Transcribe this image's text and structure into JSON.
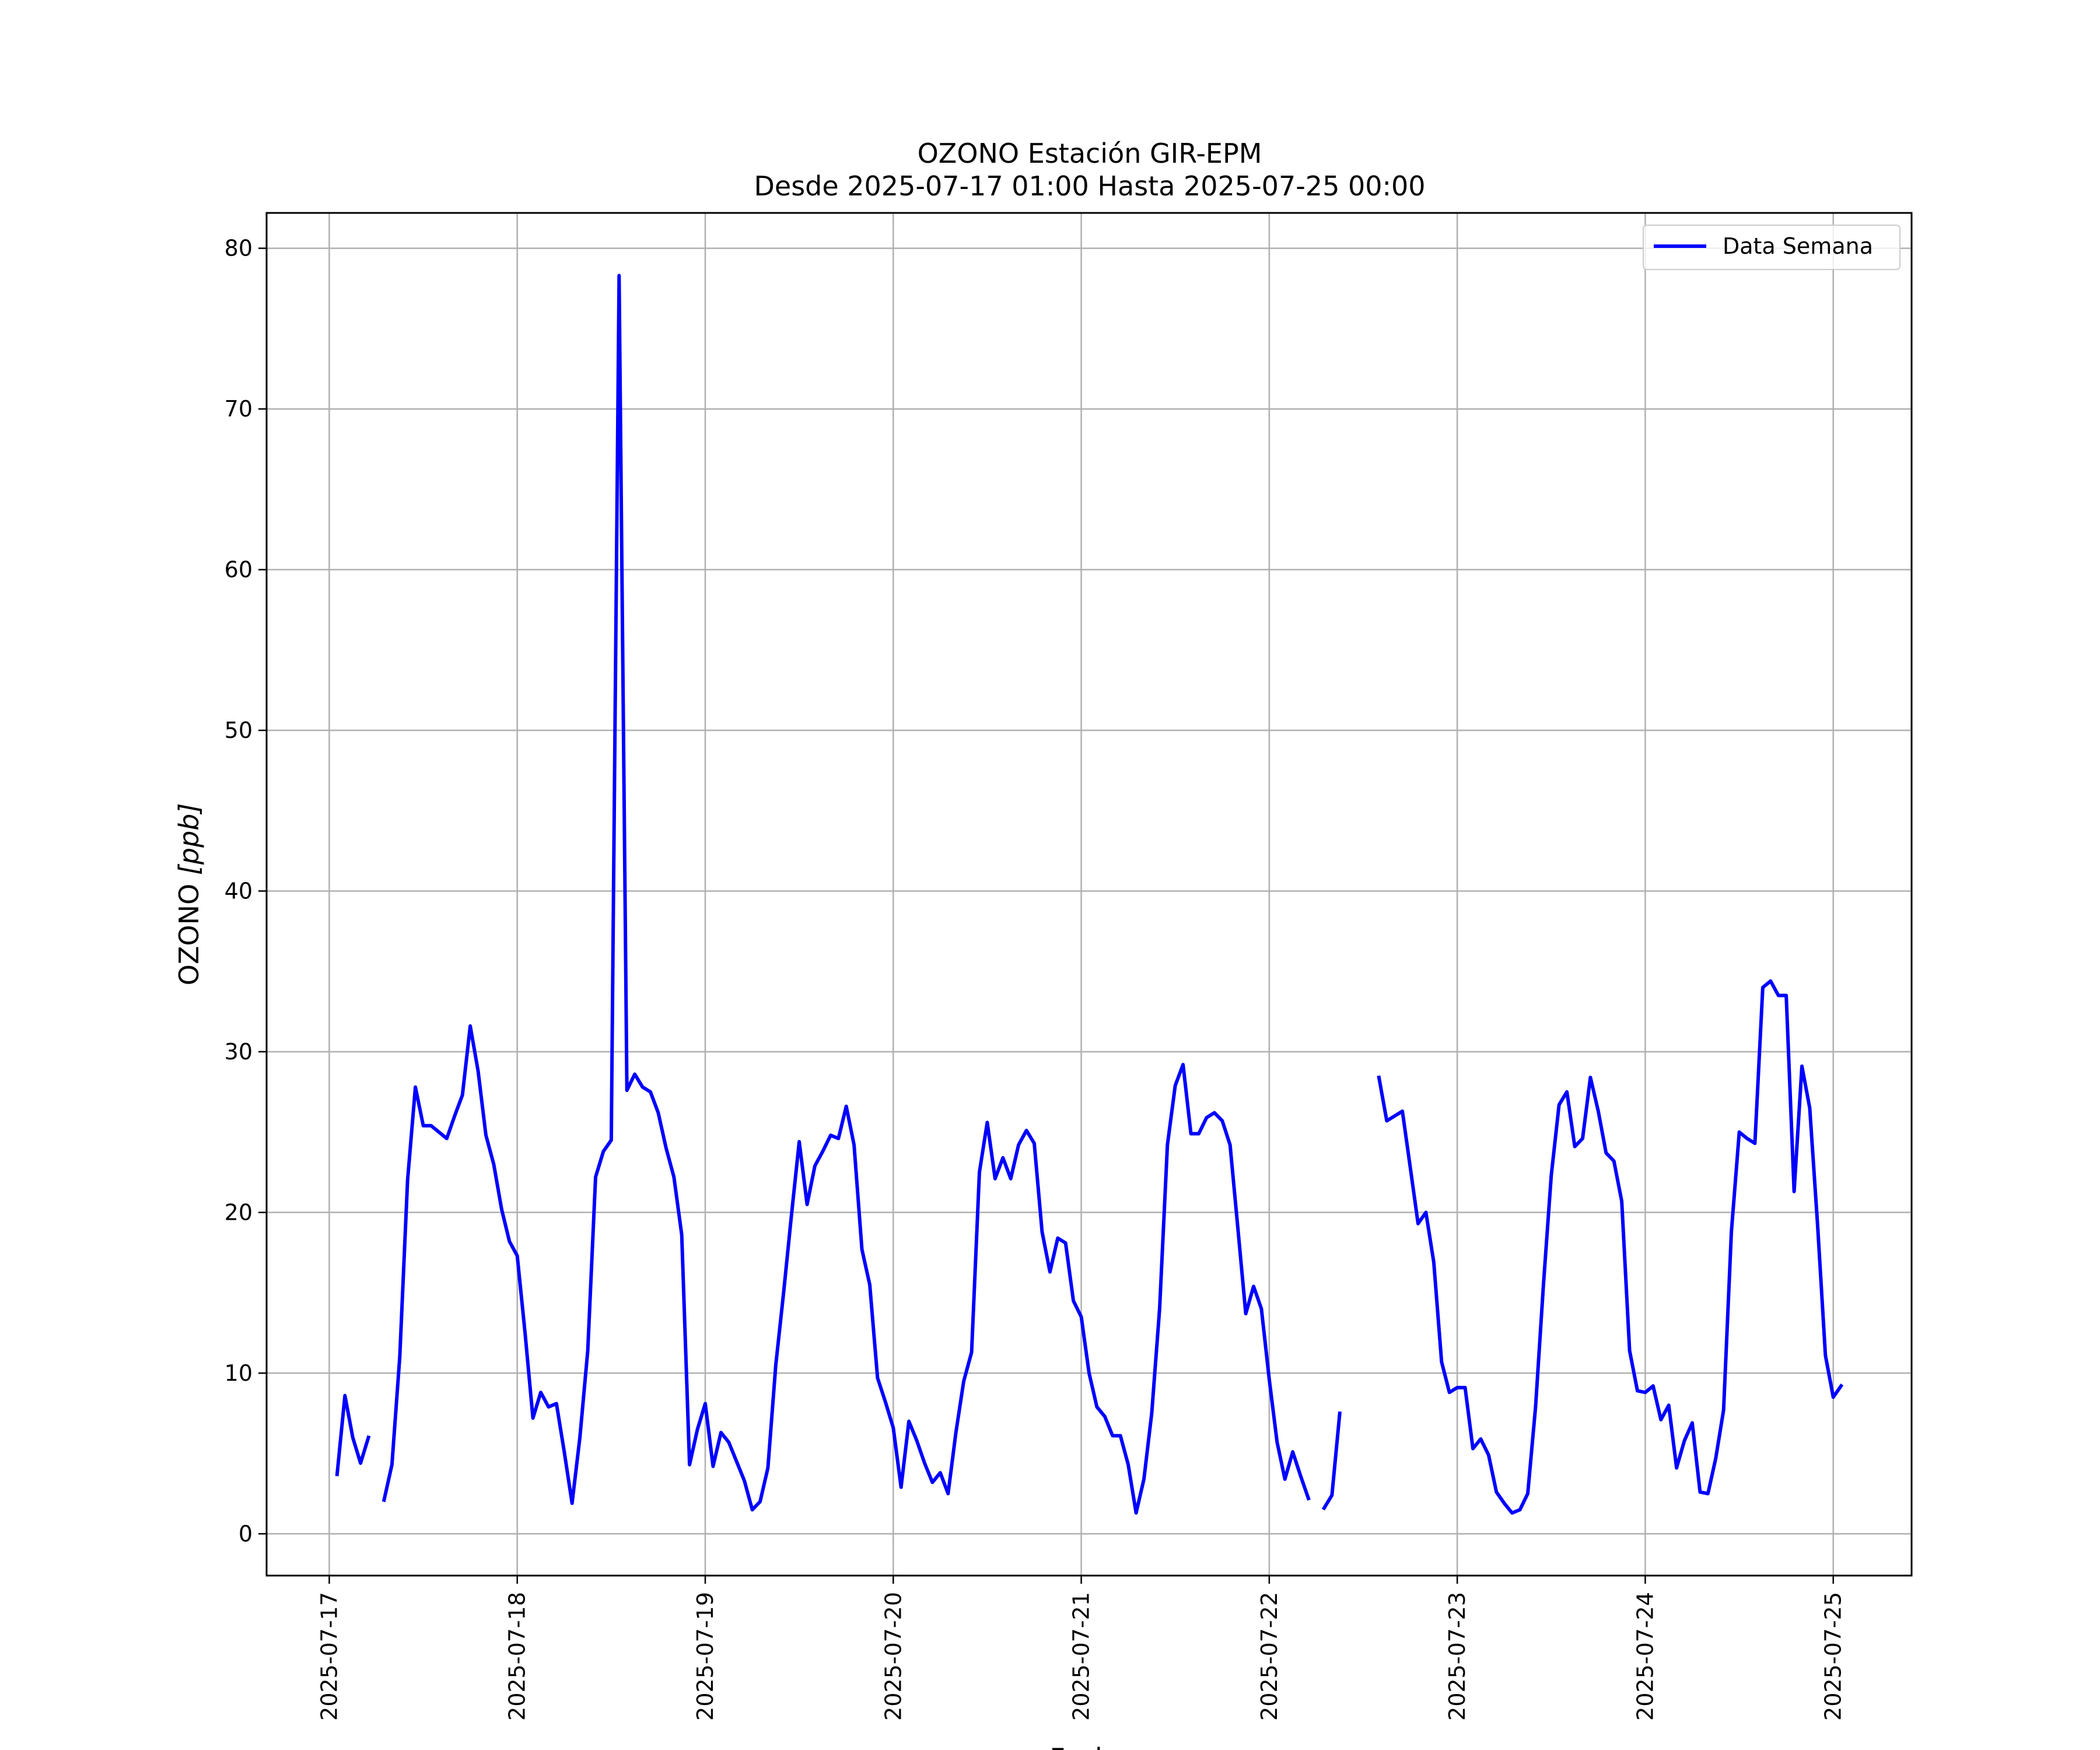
{
  "chart_data": {
    "type": "line",
    "title": "OZONO Estación GIR-EPM",
    "subtitle": "Desde 2025-07-17 01:00 Hasta 2025-07-25 00:00",
    "xlabel": "Fecha",
    "ylabel_main": "OZONO ",
    "ylabel_unit": "[ppb]",
    "grid": true,
    "legend_position": "top-right",
    "x_ticks": [
      "2025-07-17",
      "2025-07-18",
      "2025-07-19",
      "2025-07-20",
      "2025-07-21",
      "2025-07-22",
      "2025-07-23",
      "2025-07-24",
      "2025-07-25"
    ],
    "y_ticks": [
      "0",
      "10",
      "20",
      "30",
      "40",
      "50",
      "60",
      "70",
      "80"
    ],
    "xlim": [
      "2025-07-16 16:00",
      "2025-07-25 10:00"
    ],
    "ylim": [
      -2.6,
      82.2
    ],
    "colors": {
      "series": "#0000ff",
      "grid": "#b0b0b0"
    },
    "series": [
      {
        "name": "Data Semana",
        "x_start": "2025-07-17 01:00",
        "x_step": "1 hour",
        "values": [
          3.7,
          8.6,
          6.0,
          4.4,
          6.0,
          null,
          2.1,
          4.3,
          11.0,
          22.0,
          27.8,
          25.4,
          25.4,
          25.0,
          24.6,
          26.0,
          27.3,
          31.6,
          28.8,
          24.8,
          23.0,
          20.2,
          18.2,
          17.3,
          12.5,
          7.2,
          8.8,
          7.9,
          8.1,
          5.1,
          1.9,
          6.0,
          11.4,
          22.2,
          23.8,
          24.5,
          78.3,
          27.6,
          28.6,
          27.8,
          27.5,
          26.2,
          24.0,
          22.2,
          18.6,
          4.3,
          6.5,
          8.1,
          4.2,
          6.3,
          5.7,
          4.5,
          3.3,
          1.5,
          2.0,
          4.1,
          10.5,
          15.0,
          19.8,
          24.4,
          20.5,
          22.9,
          23.8,
          24.8,
          24.6,
          26.6,
          24.2,
          17.7,
          15.5,
          9.7,
          8.2,
          6.6,
          2.9,
          7.0,
          5.8,
          4.4,
          3.2,
          3.8,
          2.5,
          6.3,
          9.5,
          11.3,
          22.5,
          25.6,
          22.1,
          23.4,
          22.1,
          24.2,
          25.1,
          24.3,
          18.8,
          16.3,
          18.4,
          18.1,
          14.5,
          13.5,
          10.0,
          7.9,
          7.3,
          6.1,
          6.1,
          4.3,
          1.3,
          3.4,
          7.5,
          14.0,
          24.2,
          27.9,
          29.2,
          24.9,
          24.9,
          25.9,
          26.2,
          25.7,
          24.2,
          19.0,
          13.7,
          15.4,
          14.0,
          9.6,
          5.7,
          3.4,
          5.1,
          3.6,
          2.2,
          null,
          1.6,
          2.4,
          7.5,
          null,
          null,
          null,
          null,
          28.4,
          25.7,
          26.0,
          26.3,
          22.8,
          19.3,
          20.0,
          16.9,
          10.7,
          8.8,
          9.1,
          9.1,
          5.3,
          5.9,
          4.9,
          2.6,
          1.9,
          1.3,
          1.5,
          2.5,
          7.9,
          15.5,
          22.3,
          26.7,
          27.5,
          24.1,
          24.6,
          28.4,
          26.3,
          23.7,
          23.2,
          20.7,
          11.4,
          8.9,
          8.8,
          9.2,
          7.1,
          8.0,
          4.1,
          5.8,
          6.9,
          2.6,
          2.5,
          4.7,
          7.7,
          18.8,
          25.0,
          24.6,
          24.3,
          34.0,
          34.4,
          33.5,
          33.5,
          21.3,
          29.1,
          26.5,
          19.2,
          11.1,
          8.5,
          9.2
        ]
      }
    ]
  }
}
